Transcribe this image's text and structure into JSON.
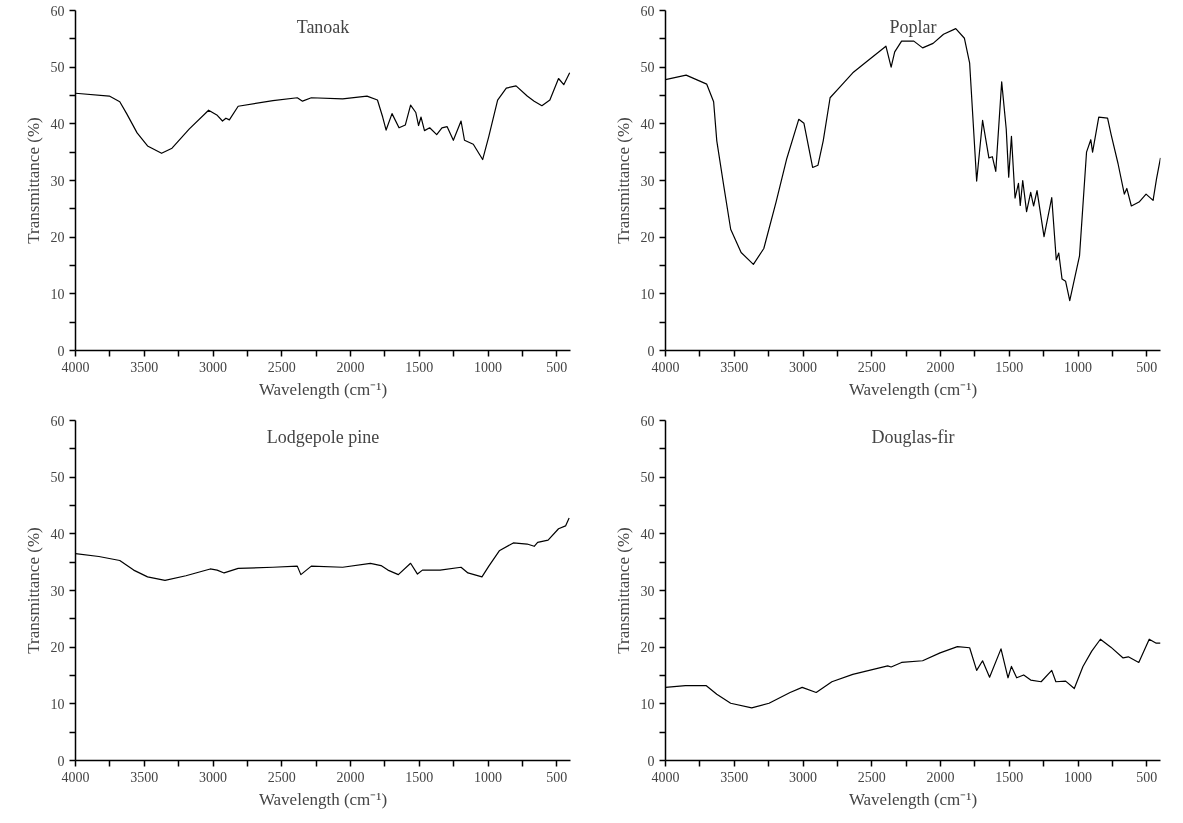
{
  "chart_data": [
    {
      "type": "line",
      "title": "Tanoak",
      "xlabel": "Wavelength (cm⁻¹)",
      "ylabel": "Transmittance (%)",
      "color": "#000000",
      "x": [
        4000,
        3754,
        3678,
        3628,
        3552,
        3476,
        3374,
        3298,
        3172,
        3032,
        2969,
        2931,
        2906,
        2881,
        2817,
        2564,
        2387,
        2349,
        2285,
        2057,
        1880,
        1804,
        1766,
        1741,
        1698,
        1647,
        1601,
        1563,
        1525,
        1505,
        1487,
        1462,
        1424,
        1373,
        1335,
        1297,
        1252,
        1196,
        1171,
        1107,
        1039,
        994,
        930,
        867,
        796,
        715,
        664,
        608,
        550,
        487,
        449,
        406
      ],
      "values": [
        45.4,
        44.9,
        43.9,
        41.8,
        38.4,
        36.1,
        34.8,
        35.7,
        39.1,
        42.4,
        41.5,
        40.5,
        41,
        40.7,
        43.1,
        44.1,
        44.6,
        44,
        44.6,
        44.4,
        44.9,
        44.2,
        41.2,
        38.9,
        41.8,
        39.3,
        39.8,
        43.3,
        42,
        39.7,
        41.2,
        38.8,
        39.3,
        38.1,
        39.3,
        39.5,
        37.1,
        40.5,
        37.1,
        36.4,
        33.7,
        37.8,
        44.2,
        46.3,
        46.7,
        44.9,
        44,
        43.2,
        44.2,
        48,
        46.9,
        49
      ],
      "xlim": [
        4000,
        400
      ],
      "ylim": [
        0,
        60
      ],
      "xticks": [
        4000,
        {
          "value": 3750,
          "label": null
        },
        3500,
        {
          "value": 3250,
          "label": null
        },
        3000,
        {
          "value": 2750,
          "label": null
        },
        2500,
        {
          "value": 2250,
          "label": null
        },
        2000,
        {
          "value": 1750,
          "label": null
        },
        1500,
        {
          "value": 1250,
          "label": null
        },
        1000,
        {
          "value": 750,
          "label": null
        },
        500
      ],
      "yticks": [
        0,
        {
          "value": 5,
          "label": null
        },
        10,
        {
          "value": 15,
          "label": null
        },
        20,
        {
          "value": 25,
          "label": null
        },
        30,
        {
          "value": 35,
          "label": null
        },
        40,
        {
          "value": 45,
          "label": null
        },
        50,
        {
          "value": 55,
          "label": null
        },
        60
      ]
    },
    {
      "type": "line",
      "title": "Poplar",
      "xlabel": "Wavelength (cm⁻¹)",
      "ylabel": "Transmittance (%)",
      "color": "#000000",
      "x": [
        4000,
        3850,
        3700,
        3650,
        3627,
        3576,
        3526,
        3450,
        3361,
        3285,
        3196,
        3120,
        3031,
        2993,
        2930,
        2891,
        2853,
        2803,
        2739,
        2638,
        2536,
        2397,
        2359,
        2333,
        2283,
        2194,
        2130,
        2054,
        1978,
        1889,
        1826,
        1788,
        1763,
        1737,
        1694,
        1648,
        1623,
        1598,
        1555,
        1522,
        1504,
        1484,
        1458,
        1433,
        1420,
        1402,
        1374,
        1344,
        1323,
        1298,
        1247,
        1191,
        1158,
        1140,
        1116,
        1090,
        1060,
        989,
        938,
        907,
        894,
        849,
        785,
        759,
        709,
        663,
        645,
        612,
        556,
        505,
        454,
        429,
        400
      ],
      "values": [
        47.8,
        48.6,
        47,
        43.9,
        37,
        29,
        21.4,
        17.3,
        15.2,
        18,
        26.2,
        33.7,
        40.8,
        40.1,
        32.3,
        32.7,
        37,
        44.6,
        46.3,
        49,
        51,
        53.7,
        50,
        52.7,
        54.6,
        54.6,
        53.4,
        54.2,
        55.8,
        56.8,
        55.1,
        50.7,
        40.5,
        29.9,
        40.6,
        34,
        34.2,
        31.6,
        47.4,
        39.1,
        30.6,
        37.8,
        26.9,
        29.5,
        25.6,
        30,
        24.5,
        27.9,
        25.5,
        28.2,
        20.1,
        27,
        16,
        17.2,
        12.6,
        12.2,
        8.8,
        16.7,
        35,
        37.2,
        35,
        41.2,
        41,
        38.1,
        33,
        27.6,
        28.6,
        25.5,
        26.2,
        27.6,
        26.5,
        30.3,
        34
      ],
      "xlim": [
        4000,
        400
      ],
      "ylim": [
        0,
        60
      ],
      "xticks": [
        4000,
        {
          "value": 3750,
          "label": null
        },
        3500,
        {
          "value": 3250,
          "label": null
        },
        3000,
        {
          "value": 2750,
          "label": null
        },
        2500,
        {
          "value": 2250,
          "label": null
        },
        2000,
        {
          "value": 1750,
          "label": null
        },
        1500,
        {
          "value": 1250,
          "label": null
        },
        1000,
        {
          "value": 750,
          "label": null
        },
        500
      ],
      "yticks": [
        0,
        {
          "value": 5,
          "label": null
        },
        10,
        {
          "value": 15,
          "label": null
        },
        20,
        {
          "value": 25,
          "label": null
        },
        30,
        {
          "value": 35,
          "label": null
        },
        40,
        {
          "value": 45,
          "label": null
        },
        50,
        {
          "value": 55,
          "label": null
        },
        60
      ]
    },
    {
      "type": "line",
      "title": "Lodgepole pine",
      "xlabel": "Wavelength (cm⁻¹)",
      "ylabel": "Transmittance (%)",
      "color": "#000000",
      "x": [
        4000,
        3830,
        3678,
        3577,
        3476,
        3349,
        3197,
        3020,
        2970,
        2919,
        2817,
        2564,
        2387,
        2361,
        2285,
        2057,
        1855,
        1778,
        1728,
        1652,
        1563,
        1513,
        1477,
        1348,
        1196,
        1146,
        1044,
        994,
        918,
        816,
        715,
        664,
        639,
        563,
        487,
        436,
        410
      ],
      "values": [
        36.5,
        36,
        35.3,
        33.6,
        32.4,
        31.8,
        32.6,
        33.8,
        33.6,
        33.1,
        33.9,
        34.1,
        34.3,
        32.8,
        34.3,
        34.1,
        34.8,
        34.4,
        33.6,
        32.8,
        34.8,
        32.9,
        33.6,
        33.6,
        34.1,
        33.1,
        32.4,
        34.3,
        37,
        38.4,
        38.2,
        37.8,
        38.5,
        38.9,
        40.9,
        41.4,
        42.8
      ],
      "xlim": [
        4000,
        400
      ],
      "ylim": [
        0,
        60
      ],
      "xticks": [
        4000,
        {
          "value": 3750,
          "label": null
        },
        3500,
        {
          "value": 3250,
          "label": null
        },
        3000,
        {
          "value": 2750,
          "label": null
        },
        2500,
        {
          "value": 2250,
          "label": null
        },
        2000,
        {
          "value": 1750,
          "label": null
        },
        1500,
        {
          "value": 1250,
          "label": null
        },
        1000,
        {
          "value": 750,
          "label": null
        },
        500
      ],
      "yticks": [
        0,
        {
          "value": 5,
          "label": null
        },
        10,
        {
          "value": 15,
          "label": null
        },
        20,
        {
          "value": 25,
          "label": null
        },
        30,
        {
          "value": 35,
          "label": null
        },
        40,
        {
          "value": 45,
          "label": null
        },
        50,
        {
          "value": 55,
          "label": null
        },
        60
      ]
    },
    {
      "type": "line",
      "title": "Douglas-fir",
      "xlabel": "Wavelength (cm⁻¹)",
      "ylabel": "Transmittance (%)",
      "color": "#000000",
      "x": [
        4000,
        3855,
        3703,
        3627,
        3526,
        3373,
        3247,
        3094,
        3006,
        2904,
        2790,
        2638,
        2384,
        2359,
        2283,
        2130,
        2003,
        1877,
        1788,
        1737,
        1694,
        1643,
        1560,
        1509,
        1484,
        1446,
        1395,
        1344,
        1268,
        1191,
        1161,
        1090,
        1027,
        964,
        900,
        837,
        761,
        672,
        634,
        558,
        482,
        431,
        400
      ],
      "values": [
        12.9,
        13.2,
        13.2,
        11.7,
        10.1,
        9.3,
        10.1,
        12,
        12.9,
        12,
        13.9,
        15.2,
        16.7,
        16.5,
        17.3,
        17.6,
        19,
        20.1,
        19.9,
        15.9,
        17.6,
        14.7,
        19.7,
        14.6,
        16.6,
        14.6,
        15.1,
        14.2,
        13.9,
        15.9,
        13.9,
        14,
        12.7,
        16.6,
        19.3,
        21.4,
        20,
        18.1,
        18.3,
        17.3,
        21.4,
        20.7,
        20.7
      ],
      "xlim": [
        4000,
        400
      ],
      "ylim": [
        0,
        60
      ],
      "xticks": [
        4000,
        {
          "value": 3750,
          "label": null
        },
        3500,
        {
          "value": 3250,
          "label": null
        },
        3000,
        {
          "value": 2750,
          "label": null
        },
        2500,
        {
          "value": 2250,
          "label": null
        },
        2000,
        {
          "value": 1750,
          "label": null
        },
        1500,
        {
          "value": 1250,
          "label": null
        },
        1000,
        {
          "value": 750,
          "label": null
        },
        500
      ],
      "yticks": [
        0,
        {
          "value": 5,
          "label": null
        },
        10,
        {
          "value": 15,
          "label": null
        },
        20,
        {
          "value": 25,
          "label": null
        },
        30,
        {
          "value": 35,
          "label": null
        },
        40,
        {
          "value": 45,
          "label": null
        },
        50,
        {
          "value": 55,
          "label": null
        },
        60
      ]
    }
  ]
}
